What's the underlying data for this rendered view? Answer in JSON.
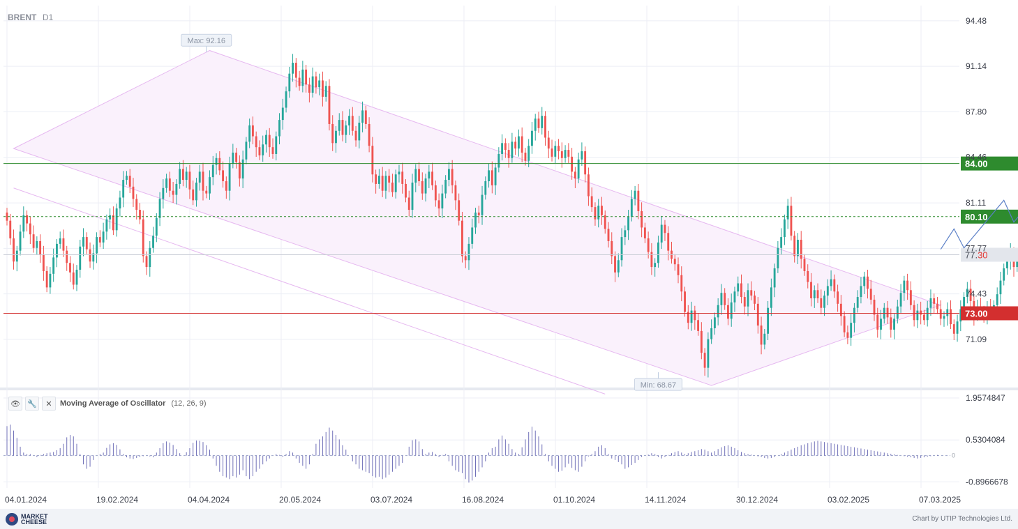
{
  "instrument": {
    "symbol": "BRENT",
    "timeframe": "D1"
  },
  "indicator": {
    "name": "Moving Average of Oscillator",
    "params": "(12, 26, 9)"
  },
  "icons": [
    "eye-icon",
    "wrench-icon",
    "close-icon"
  ],
  "footer": {
    "logo_line1": "MARKET",
    "logo_line2": "CHEESE",
    "credit": "Chart by UTIP Technologies Ltd."
  },
  "colors": {
    "up": "#26a69a",
    "down": "#ef5350",
    "support": "#d32f2f",
    "resistance": "#2e8b2e",
    "channel": "#e6b8f0",
    "forecast": "#5a7fc7",
    "histogram": "#7070b8"
  },
  "chart_data": {
    "type": "candlestick",
    "price_axis": {
      "ticks": [
        "94.48",
        "91.14",
        "87.80",
        "84.46",
        "81.11",
        "77.77",
        "74.43",
        "71.09"
      ],
      "ylim": [
        67.6,
        95.6
      ]
    },
    "oscillator_axis": {
      "ticks": [
        "1.9574847",
        "0.5304084",
        "-0.8966678"
      ],
      "zero_label": "0",
      "ylim": [
        -1.1,
        2.1
      ]
    },
    "x_ticks": [
      "04.01.2024",
      "19.02.2024",
      "04.04.2024",
      "20.05.2024",
      "03.07.2024",
      "16.08.2024",
      "01.10.2024",
      "14.11.2024",
      "30.12.2024",
      "03.02.2025",
      "07.03.2025"
    ],
    "annotations": {
      "max_label": "Max: 92.16",
      "max_value": 92.16,
      "max_index": 60,
      "min_label": "Min: 68.67",
      "min_value": 68.67,
      "min_index": 196
    },
    "levels": [
      {
        "label": "84.00",
        "value": 84.0,
        "style": "solid",
        "color": "#2e8b2e"
      },
      {
        "label": "80.10",
        "value": 80.1,
        "style": "dashed",
        "color": "#2e8b2e"
      },
      {
        "label": "73.00",
        "value": 73.0,
        "style": "solid",
        "color": "#d32f2f"
      }
    ],
    "current_price": {
      "label_main": "77.",
      "label_tail": "30",
      "value": 77.3
    },
    "start_index": 0,
    "end_index": 282,
    "closes": [
      79.8,
      78.5,
      76.8,
      77.6,
      79.0,
      80.2,
      79.6,
      78.8,
      77.8,
      78.3,
      77.3,
      76.1,
      74.9,
      75.9,
      77.1,
      78.1,
      78.5,
      77.6,
      76.7,
      76.0,
      75.1,
      76.2,
      77.9,
      78.6,
      77.7,
      76.8,
      77.4,
      78.6,
      78.2,
      79.0,
      79.9,
      80.2,
      79.1,
      80.7,
      81.5,
      82.8,
      83.1,
      82.3,
      81.4,
      80.6,
      79.9,
      77.2,
      76.4,
      77.8,
      78.7,
      80.0,
      81.4,
      82.2,
      82.9,
      82.0,
      81.7,
      82.5,
      83.6,
      82.8,
      83.4,
      82.1,
      81.3,
      82.6,
      83.4,
      82.0,
      81.8,
      83.0,
      83.9,
      84.4,
      83.5,
      82.7,
      82.0,
      84.0,
      84.8,
      84.1,
      82.9,
      84.3,
      85.6,
      86.8,
      86.0,
      85.2,
      84.6,
      85.4,
      86.1,
      85.2,
      84.7,
      86.0,
      87.2,
      88.1,
      89.3,
      90.6,
      91.4,
      90.3,
      89.7,
      90.9,
      89.8,
      89.2,
      90.4,
      89.6,
      90.1,
      88.9,
      89.7,
      86.9,
      85.5,
      86.4,
      87.2,
      86.1,
      86.8,
      87.5,
      86.4,
      85.7,
      87.0,
      87.9,
      86.9,
      85.3,
      83.2,
      82.5,
      83.1,
      82.0,
      83.1,
      82.6,
      81.9,
      83.2,
      83.4,
      82.5,
      81.5,
      80.6,
      82.6,
      83.6,
      82.7,
      81.8,
      82.9,
      83.4,
      82.4,
      81.3,
      80.7,
      81.8,
      82.8,
      83.6,
      82.4,
      81.3,
      79.8,
      77.2,
      76.9,
      78.1,
      79.3,
      80.4,
      80.2,
      81.7,
      82.7,
      83.5,
      82.4,
      83.7,
      84.7,
      85.5,
      85.0,
      84.4,
      85.6,
      85.1,
      86.0,
      84.8,
      84.2,
      85.3,
      86.4,
      87.3,
      86.6,
      87.5,
      85.9,
      85.1,
      84.5,
      85.3,
      84.9,
      84.4,
      85.0,
      84.5,
      83.4,
      82.9,
      84.3,
      84.9,
      83.2,
      81.6,
      80.8,
      79.9,
      80.9,
      80.2,
      79.2,
      78.3,
      77.2,
      76.0,
      76.9,
      78.6,
      79.1,
      80.1,
      81.4,
      82.0,
      80.5,
      79.3,
      78.5,
      77.5,
      76.4,
      76.7,
      78.2,
      79.5,
      78.9,
      77.6,
      77.0,
      76.6,
      75.8,
      74.6,
      73.1,
      72.3,
      73.2,
      72.5,
      71.7,
      70.1,
      69.0,
      71.1,
      71.9,
      72.7,
      73.6,
      74.5,
      73.6,
      72.6,
      73.8,
      74.6,
      75.2,
      74.2,
      73.5,
      74.7,
      74.3,
      73.7,
      72.1,
      70.7,
      71.5,
      73.4,
      74.9,
      76.3,
      77.8,
      78.6,
      79.9,
      80.9,
      78.7,
      77.2,
      78.4,
      77.0,
      76.1,
      75.3,
      74.1,
      74.7,
      74.1,
      73.4,
      74.3,
      75.0,
      75.5,
      74.6,
      73.7,
      72.8,
      71.6,
      71.2,
      72.3,
      73.4,
      74.2,
      75.0,
      75.7,
      74.8,
      74.0,
      72.9,
      71.8,
      72.6,
      73.4,
      72.7,
      71.8,
      72.6,
      73.5,
      74.5,
      75.4,
      74.7,
      73.6,
      72.5,
      73.2,
      72.9,
      72.5,
      73.4,
      74.1,
      73.7,
      73.3,
      72.6,
      72.8,
      73.3,
      72.2,
      71.5,
      72.4,
      73.3,
      74.2,
      74.8,
      73.9,
      72.8,
      73.5,
      73.2,
      72.9,
      73.4,
      73.0,
      73.6,
      74.4,
      75.4,
      76.3,
      76.8,
      77.5,
      76.4,
      77.0,
      77.3
    ],
    "oscillator": [
      1.0,
      1.05,
      0.85,
      0.6,
      0.3,
      0.1,
      0.05,
      0.05,
      0.0,
      -0.05,
      0.02,
      0.05,
      0.08,
      0.1,
      0.12,
      0.18,
      0.25,
      0.4,
      0.62,
      0.7,
      0.65,
      0.4,
      0.05,
      -0.3,
      -0.45,
      -0.38,
      -0.15,
      0.0,
      0.05,
      0.1,
      0.26,
      0.38,
      0.42,
      0.36,
      0.21,
      0.05,
      -0.06,
      -0.1,
      -0.12,
      -0.08,
      -0.05,
      -0.02,
      0.0,
      -0.03,
      -0.06,
      0.1,
      0.25,
      0.42,
      0.48,
      0.44,
      0.36,
      0.22,
      0.08,
      0.0,
      0.11,
      0.25,
      0.43,
      0.51,
      0.5,
      0.46,
      0.35,
      0.2,
      -0.1,
      -0.35,
      -0.55,
      -0.7,
      -0.75,
      -0.8,
      -0.7,
      -0.75,
      -0.65,
      -0.5,
      -0.7,
      -0.8,
      -0.7,
      -0.55,
      -0.45,
      -0.3,
      -0.2,
      -0.1,
      0.0,
      0.05,
      0.02,
      -0.05,
      0.05,
      0.15,
      0.1,
      -0.1,
      -0.25,
      -0.35,
      -0.45,
      -0.3,
      0.05,
      0.4,
      0.55,
      0.65,
      0.8,
      0.95,
      0.85,
      0.7,
      0.55,
      0.35,
      0.2,
      0.0,
      -0.2,
      -0.3,
      -0.45,
      -0.5,
      -0.55,
      -0.6,
      -0.7,
      -0.75,
      -0.72,
      -0.8,
      -0.75,
      -0.65,
      -0.55,
      -0.45,
      -0.35,
      -0.25,
      0.0,
      0.3,
      0.52,
      0.55,
      0.48,
      0.22,
      0.05,
      0.1,
      0.12,
      0.05,
      -0.05,
      0.02,
      0.05,
      -0.2,
      -0.35,
      -0.5,
      -0.55,
      -0.6,
      -0.8,
      -0.92,
      -0.85,
      -0.72,
      -0.55,
      -0.4,
      -0.2,
      0.1,
      0.25,
      0.3,
      0.55,
      0.68,
      0.55,
      0.4,
      0.22,
      0.1,
      0.05,
      0.28,
      0.55,
      0.8,
      0.98,
      0.85,
      0.65,
      0.38,
      0.05,
      -0.2,
      -0.35,
      -0.45,
      -0.55,
      -0.52,
      -0.4,
      -0.28,
      -0.42,
      -0.5,
      -0.55,
      -0.38,
      -0.2,
      -0.03,
      0.05,
      0.15,
      0.3,
      0.35,
      0.25,
      0.05,
      -0.1,
      -0.15,
      -0.22,
      -0.3,
      -0.45,
      -0.4,
      -0.32,
      -0.25,
      -0.15,
      -0.05,
      0.0,
      0.03,
      0.08,
      0.05,
      -0.05,
      -0.1,
      -0.05,
      0.02,
      0.08,
      0.12,
      0.15,
      0.1,
      0.05,
      0.08,
      0.12,
      0.15,
      0.18,
      0.22,
      0.2,
      0.15,
      0.1,
      0.15,
      0.22,
      0.28,
      0.32,
      0.35,
      0.3,
      0.25,
      0.18,
      0.12,
      0.08,
      0.05,
      0.03,
      0.0,
      -0.03,
      -0.05,
      -0.08,
      -0.1,
      -0.08,
      -0.05,
      0.0,
      0.05,
      0.1,
      0.15,
      0.2,
      0.25,
      0.3,
      0.35,
      0.38,
      0.42,
      0.45,
      0.48,
      0.5,
      0.48,
      0.46,
      0.44,
      0.42,
      0.4,
      0.38,
      0.36,
      0.34,
      0.32,
      0.3,
      0.28,
      0.26,
      0.24,
      0.22,
      0.2,
      0.18,
      0.16,
      0.14,
      0.12,
      0.1,
      0.08,
      0.06,
      0.04,
      0.02,
      0.0,
      -0.02,
      -0.04,
      -0.06,
      -0.08,
      -0.1,
      -0.08,
      -0.06,
      -0.04,
      -0.02,
      0.0,
      0.02
    ]
  }
}
